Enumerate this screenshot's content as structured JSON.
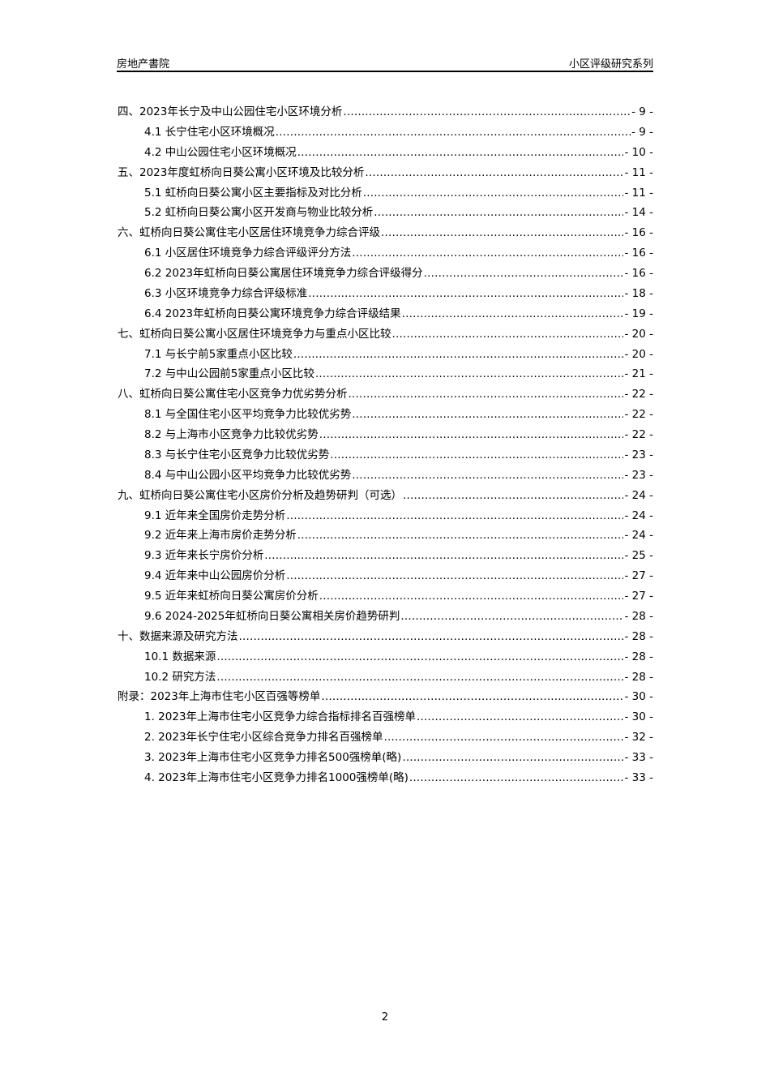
{
  "header": {
    "left": "房地产書院",
    "right": "小区评级研究系列"
  },
  "toc": [
    {
      "level": 1,
      "text": "四、2023年长宁及中山公园住宅小区环境分析",
      "page": "- 9 -"
    },
    {
      "level": 2,
      "text": "4.1 长宁住宅小区环境概况",
      "page": "- 9 -"
    },
    {
      "level": 2,
      "text": "4.2 中山公园住宅小区环境概况",
      "page": "- 10 -"
    },
    {
      "level": 1,
      "text": "五、2023年度虹桥向日葵公寓小区环境及比较分析",
      "page": "- 11 -"
    },
    {
      "level": 2,
      "text": "5.1 虹桥向日葵公寓小区主要指标及对比分析",
      "page": "- 11 -"
    },
    {
      "level": 2,
      "text": "5.2 虹桥向日葵公寓小区开发商与物业比较分析",
      "page": "- 14 -"
    },
    {
      "level": 1,
      "text": "六、虹桥向日葵公寓住宅小区居住环境竞争力综合评级",
      "page": "- 16 -"
    },
    {
      "level": 2,
      "text": "6.1 小区居住环境竞争力综合评级评分方法",
      "page": "- 16 -"
    },
    {
      "level": 2,
      "text": "6.2 2023年虹桥向日葵公寓居住环境竞争力综合评级得分",
      "page": "- 16 -"
    },
    {
      "level": 2,
      "text": "6.3 小区环境竞争力综合评级标准",
      "page": "- 18 -"
    },
    {
      "level": 2,
      "text": "6.4 2023年虹桥向日葵公寓环境竞争力综合评级结果",
      "page": "- 19 -"
    },
    {
      "level": 1,
      "text": "七、虹桥向日葵公寓小区居住环境竞争力与重点小区比较",
      "page": "- 20 -"
    },
    {
      "level": 2,
      "text": "7.1 与长宁前5家重点小区比较",
      "page": "- 20 -"
    },
    {
      "level": 2,
      "text": "7.2 与中山公园前5家重点小区比较",
      "page": "- 21 -"
    },
    {
      "level": 1,
      "text": "八、虹桥向日葵公寓住宅小区竞争力优劣势分析",
      "page": "- 22 -"
    },
    {
      "level": 2,
      "text": "8.1 与全国住宅小区平均竞争力比较优劣势",
      "page": "- 22 -"
    },
    {
      "level": 2,
      "text": "8.2 与上海市小区竞争力比较优劣势",
      "page": "- 22 -"
    },
    {
      "level": 2,
      "text": "8.3 与长宁住宅小区竞争力比较优劣势",
      "page": "- 23 -"
    },
    {
      "level": 2,
      "text": "8.4 与中山公园小区平均竞争力比较优劣势",
      "page": "- 23 -"
    },
    {
      "level": 1,
      "text": "九、虹桥向日葵公寓住宅小区房价分析及趋势研判（可选）",
      "page": "- 24 -"
    },
    {
      "level": 2,
      "text": "9.1 近年来全国房价走势分析",
      "page": "- 24 -"
    },
    {
      "level": 2,
      "text": "9.2 近年来上海市房价走势分析",
      "page": "- 24 -"
    },
    {
      "level": 2,
      "text": "9.3 近年来长宁房价分析",
      "page": "- 25 -"
    },
    {
      "level": 2,
      "text": "9.4 近年来中山公园房价分析",
      "page": "- 27 -"
    },
    {
      "level": 2,
      "text": "9.5 近年来虹桥向日葵公寓房价分析",
      "page": "- 27 -"
    },
    {
      "level": 2,
      "text": "9.6 2024-2025年虹桥向日葵公寓相关房价趋势研判",
      "page": "- 28 -"
    },
    {
      "level": 1,
      "text": "十、数据来源及研究方法",
      "page": "- 28 -"
    },
    {
      "level": 2,
      "text": "10.1 数据来源",
      "page": "- 28 -"
    },
    {
      "level": 2,
      "text": "10.2 研究方法",
      "page": "- 28 -"
    },
    {
      "level": 1,
      "text": "附录：2023年上海市住宅小区百强等榜单",
      "page": "- 30 -"
    },
    {
      "level": 2,
      "text": "1.  2023年上海市住宅小区竞争力综合指标排名百强榜单",
      "page": "- 30 -"
    },
    {
      "level": 2,
      "text": "2.  2023年长宁住宅小区综合竞争力排名百强榜单",
      "page": "- 32 -"
    },
    {
      "level": 2,
      "text": "3.  2023年上海市住宅小区竞争力排名500强榜单(略)",
      "page": "- 33 -"
    },
    {
      "level": 2,
      "text": "4.  2023年上海市住宅小区竞争力排名1000强榜单(略)",
      "page": "- 33 -"
    }
  ],
  "footer": {
    "page_number": "2"
  }
}
